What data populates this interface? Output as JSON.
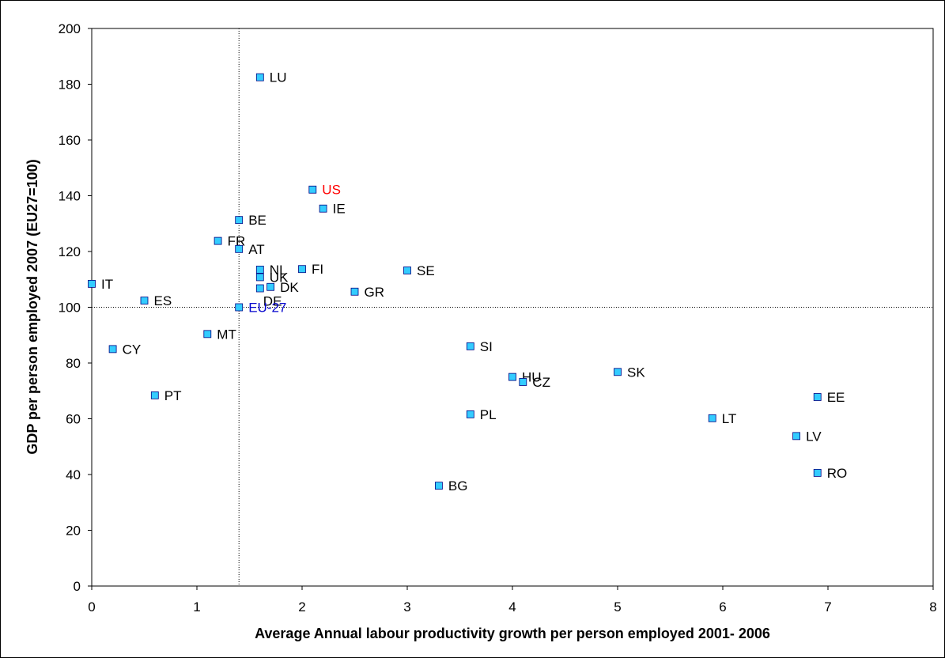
{
  "chart_data": {
    "type": "scatter",
    "xlabel": "Average Annual labour productivity growth per person employed 2001- 2006",
    "ylabel": "GDP per person employed 2007 (EU27=100)",
    "xlim": [
      0,
      8
    ],
    "ylim": [
      0,
      200
    ],
    "x_ticks": [
      "0",
      "1",
      "2",
      "3",
      "4",
      "5",
      "6",
      "7",
      "8"
    ],
    "y_ticks": [
      "0",
      "20",
      "40",
      "60",
      "80",
      "100",
      "120",
      "140",
      "160",
      "180",
      "200"
    ],
    "reference_lines": {
      "x": 1.4,
      "y": 100
    },
    "grid": false,
    "marker_color": "#33ccff",
    "points": [
      {
        "label": "LU",
        "x": 1.6,
        "y": 182.5,
        "color": "#000000"
      },
      {
        "label": "US",
        "x": 2.1,
        "y": 142.2,
        "color": "#ff0000"
      },
      {
        "label": "IE",
        "x": 2.2,
        "y": 135.4,
        "color": "#000000"
      },
      {
        "label": "BE",
        "x": 1.4,
        "y": 131.3,
        "color": "#000000"
      },
      {
        "label": "FR",
        "x": 1.2,
        "y": 123.8,
        "color": "#000000"
      },
      {
        "label": "AT",
        "x": 1.4,
        "y": 120.9,
        "color": "#000000"
      },
      {
        "label": "NL",
        "x": 1.6,
        "y": 113.5,
        "color": "#000000"
      },
      {
        "label": "FI",
        "x": 2.0,
        "y": 113.7,
        "color": "#000000"
      },
      {
        "label": "SE",
        "x": 3.0,
        "y": 113.2,
        "color": "#000000"
      },
      {
        "label": "UK",
        "x": 1.6,
        "y": 110.8,
        "color": "#000000"
      },
      {
        "label": "IT",
        "x": 0.0,
        "y": 108.4,
        "color": "#000000"
      },
      {
        "label": "DK",
        "x": 1.7,
        "y": 107.3,
        "color": "#000000"
      },
      {
        "label": "DE",
        "x": 1.6,
        "y": 106.8,
        "color": "#000000"
      },
      {
        "label": "GR",
        "x": 2.5,
        "y": 105.6,
        "color": "#000000"
      },
      {
        "label": "ES",
        "x": 0.5,
        "y": 102.4,
        "color": "#000000"
      },
      {
        "label": "EU-27",
        "x": 1.4,
        "y": 100.0,
        "color": "#0000cc"
      },
      {
        "label": "MT",
        "x": 1.1,
        "y": 90.4,
        "color": "#000000"
      },
      {
        "label": "SI",
        "x": 3.6,
        "y": 86.0,
        "color": "#000000"
      },
      {
        "label": "CY",
        "x": 0.2,
        "y": 85.0,
        "color": "#000000"
      },
      {
        "label": "SK",
        "x": 5.0,
        "y": 76.8,
        "color": "#000000"
      },
      {
        "label": "HU",
        "x": 4.0,
        "y": 75.0,
        "color": "#000000"
      },
      {
        "label": "CZ",
        "x": 4.1,
        "y": 73.2,
        "color": "#000000"
      },
      {
        "label": "PT",
        "x": 0.6,
        "y": 68.4,
        "color": "#000000"
      },
      {
        "label": "EE",
        "x": 6.9,
        "y": 67.8,
        "color": "#000000"
      },
      {
        "label": "PL",
        "x": 3.6,
        "y": 61.6,
        "color": "#000000"
      },
      {
        "label": "LT",
        "x": 5.9,
        "y": 60.2,
        "color": "#000000"
      },
      {
        "label": "LV",
        "x": 6.7,
        "y": 53.8,
        "color": "#000000"
      },
      {
        "label": "RO",
        "x": 6.9,
        "y": 40.6,
        "color": "#000000"
      },
      {
        "label": "BG",
        "x": 3.3,
        "y": 36.0,
        "color": "#000000"
      }
    ]
  }
}
